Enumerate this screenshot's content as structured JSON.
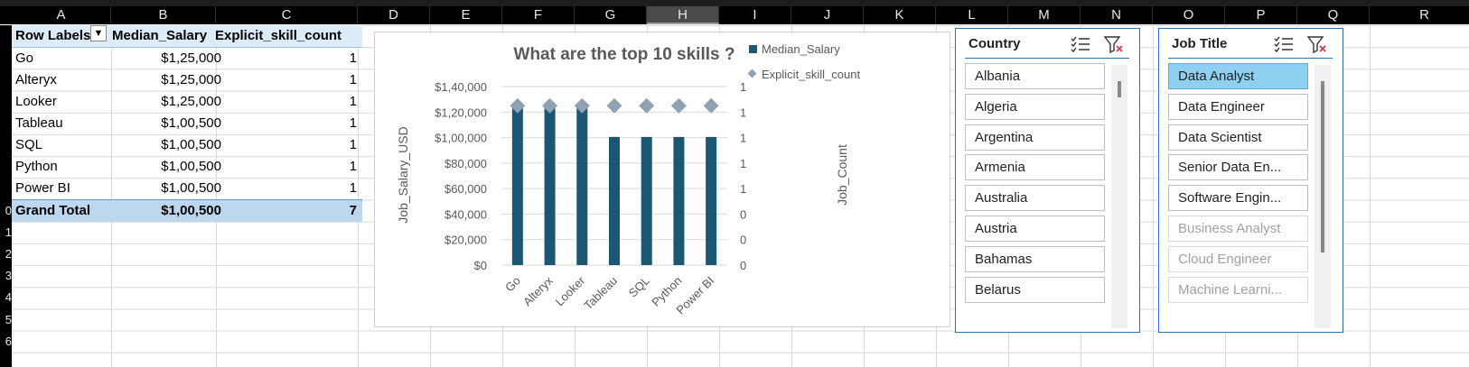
{
  "columns": [
    "A",
    "B",
    "C",
    "D",
    "E",
    "F",
    "G",
    "H",
    "I",
    "J",
    "K",
    "L",
    "M",
    "N",
    "O",
    "P",
    "Q",
    "R"
  ],
  "selected_column": "H",
  "rows": [
    "",
    "",
    "",
    "",
    "",
    "",
    "",
    "",
    "0",
    "1",
    "2",
    "3",
    "4",
    "5",
    "6"
  ],
  "pivot": {
    "headers": {
      "row_labels": "Row Labels",
      "median_salary": "Median_Salary",
      "skill_count": "Explicit_skill_count"
    },
    "rows": [
      {
        "label": "Go",
        "salary": "$1,25,000",
        "count": "1"
      },
      {
        "label": "Alteryx",
        "salary": "$1,25,000",
        "count": "1"
      },
      {
        "label": "Looker",
        "salary": "$1,25,000",
        "count": "1"
      },
      {
        "label": "Tableau",
        "salary": "$1,00,500",
        "count": "1"
      },
      {
        "label": "SQL",
        "salary": "$1,00,500",
        "count": "1"
      },
      {
        "label": "Python",
        "salary": "$1,00,500",
        "count": "1"
      },
      {
        "label": "Power BI",
        "salary": "$1,00,500",
        "count": "1"
      }
    ],
    "total": {
      "label": "Grand Total",
      "salary": "$1,00,500",
      "count": "7"
    }
  },
  "chart_data": {
    "type": "bar",
    "title": "What are the top 10 skills ?",
    "categories": [
      "Go",
      "Alteryx",
      "Looker",
      "Tableau",
      "SQL",
      "Python",
      "Power BI"
    ],
    "series": [
      {
        "name": "Median_Salary",
        "type": "bar",
        "axis": "left",
        "values": [
          125000,
          125000,
          125000,
          100500,
          100500,
          100500,
          100500
        ],
        "color": "#1b5672"
      },
      {
        "name": "Explicit_skill_count",
        "type": "scatter",
        "axis": "right",
        "values": [
          1,
          1,
          1,
          1,
          1,
          1,
          1
        ],
        "color": "#8fa2b4"
      }
    ],
    "ylabel": "Job_Salary_USD",
    "y2label": "Job_Count",
    "ylim": [
      0,
      140000
    ],
    "y_ticks": [
      "$0",
      "$20,000",
      "$40,000",
      "$60,000",
      "$80,000",
      "$1,00,000",
      "$1,20,000",
      "$1,40,000"
    ],
    "y2_ticks": [
      "0",
      "0",
      "0",
      "1",
      "1",
      "1",
      "1",
      "1"
    ],
    "legend": "top-right",
    "grid": true
  },
  "slicer_country": {
    "title": "Country",
    "items": [
      "Albania",
      "Algeria",
      "Argentina",
      "Armenia",
      "Australia",
      "Austria",
      "Bahamas",
      "Belarus"
    ]
  },
  "slicer_job": {
    "title": "Job Title",
    "items": [
      {
        "label": "Data Analyst",
        "state": "selected"
      },
      {
        "label": "Data Engineer",
        "state": "normal"
      },
      {
        "label": "Data Scientist",
        "state": "normal"
      },
      {
        "label": "Senior Data En...",
        "state": "normal"
      },
      {
        "label": "Software Engin...",
        "state": "normal"
      },
      {
        "label": "Business Analyst",
        "state": "dim"
      },
      {
        "label": "Cloud Engineer",
        "state": "dim"
      },
      {
        "label": "Machine Learni...",
        "state": "dim"
      }
    ]
  },
  "colors": {
    "pivot_header": "#ddebf7",
    "pivot_total": "#bdd7ee",
    "slicer_border": "#2e75b6",
    "slicer_selected": "#8fd0f0",
    "bar": "#1b5672",
    "marker": "#8fa2b4"
  }
}
